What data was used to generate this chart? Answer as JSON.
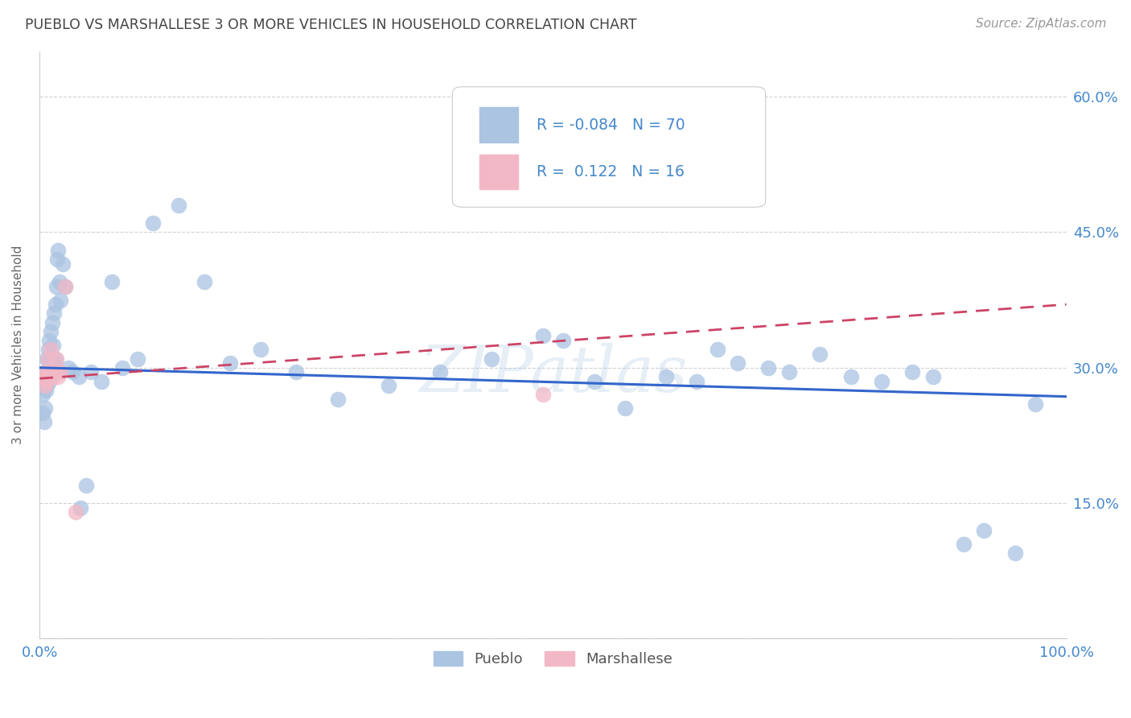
{
  "title": "PUEBLO VS MARSHALLESE 3 OR MORE VEHICLES IN HOUSEHOLD CORRELATION CHART",
  "source": "Source: ZipAtlas.com",
  "ylabel": "3 or more Vehicles in Household",
  "xlim": [
    0,
    1.0
  ],
  "ylim": [
    0,
    0.65
  ],
  "pueblo_color": "#aac4e2",
  "marshallese_color": "#f2b8c6",
  "pueblo_line_color": "#3366cc",
  "marshallese_line_color": "#cc4466",
  "background_color": "#ffffff",
  "grid_color": "#cccccc",
  "legend_R_pueblo": "-0.084",
  "legend_N_pueblo": "70",
  "legend_R_marshallese": "0.122",
  "legend_N_marshallese": "16",
  "title_color": "#444444",
  "axis_label_color": "#666666",
  "tick_label_color": "#4488cc",
  "source_color": "#999999",
  "watermark": "ZIPatlas",
  "legend_text_color": "#4488cc",
  "pueblo_trend_x": [
    0.0,
    1.0
  ],
  "pueblo_trend_y": [
    0.3,
    0.268
  ],
  "marshallese_trend_x": [
    0.0,
    1.0
  ],
  "marshallese_trend_y": [
    0.288,
    0.37
  ]
}
